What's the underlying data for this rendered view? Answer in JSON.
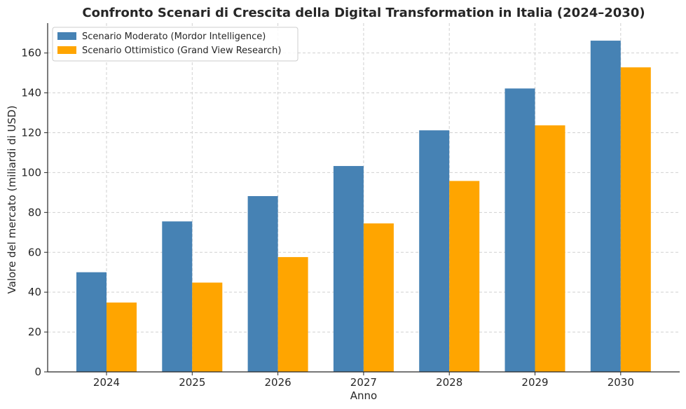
{
  "chart_data": {
    "type": "bar",
    "title": "Confronto Scenari di Crescita della Digital Transformation in Italia (2024–2030)",
    "xlabel": "Anno",
    "ylabel": "Valore del mercato (miliardi di USD)",
    "categories": [
      "2024",
      "2025",
      "2026",
      "2027",
      "2028",
      "2029",
      "2030"
    ],
    "series": [
      {
        "name": "Scenario Moderato (Mordor Intelligence)",
        "color": "#4682b4",
        "values": [
          50,
          75.5,
          88.2,
          103.3,
          121.2,
          142.2,
          166.2
        ]
      },
      {
        "name": "Scenario Ottimistico (Grand View Research)",
        "color": "#ffa500",
        "values": [
          34.8,
          44.8,
          57.6,
          74.5,
          95.8,
          123.7,
          152.8
        ]
      }
    ],
    "ylim": [
      0,
      175
    ],
    "yticks": [
      0,
      20,
      40,
      60,
      80,
      100,
      120,
      140,
      160
    ],
    "grid": true,
    "legend_position": "top-left"
  }
}
